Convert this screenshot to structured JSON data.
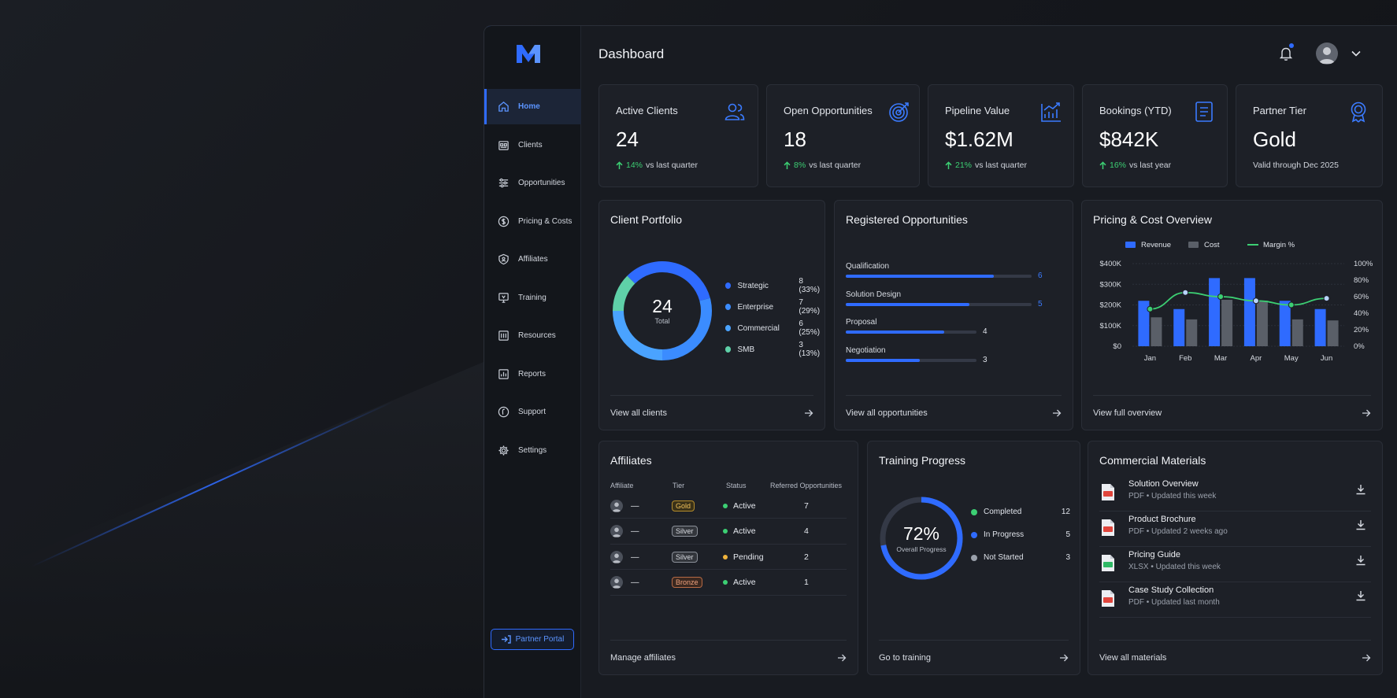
{
  "app": {
    "logo_letter": "M",
    "accent_color": "#2f6bff",
    "positive_color": "#3ccf73"
  },
  "sidebar": {
    "items": [
      {
        "label": "Home",
        "icon": "home-icon",
        "active": true
      },
      {
        "label": "Clients",
        "icon": "clients-icon"
      },
      {
        "label": "Opportunities",
        "icon": "opportunities-icon"
      },
      {
        "label": "Pricing & Costs",
        "icon": "dollar-icon"
      },
      {
        "label": "Affiliates",
        "icon": "shield-icon"
      },
      {
        "label": "Training",
        "icon": "training-icon"
      },
      {
        "label": "Resources",
        "icon": "resources-icon"
      },
      {
        "label": "Reports",
        "icon": "reports-icon"
      },
      {
        "label": "Support",
        "icon": "support-icon"
      },
      {
        "label": "Settings",
        "icon": "gear-icon"
      }
    ],
    "portal_label": "Partner Portal"
  },
  "header": {
    "title": "Dashboard",
    "notifications_unread": true
  },
  "stats": [
    {
      "title": "Active Clients",
      "value": "24",
      "pct": "14%",
      "suffix": "vs last quarter",
      "icon": "users-icon"
    },
    {
      "title": "Open Opportunities",
      "value": "18",
      "pct": "8%",
      "suffix": "vs last quarter",
      "icon": "target-icon"
    },
    {
      "title": "Pipeline Value",
      "value": "$1.62M",
      "pct": "21%",
      "suffix": "vs last quarter",
      "icon": "growth-chart-icon"
    },
    {
      "title": "Bookings (YTD)",
      "value": "$842K",
      "pct": "16%",
      "suffix": "vs last year",
      "icon": "document-icon"
    },
    {
      "title": "Partner Tier",
      "value": "Gold",
      "note": "Valid through Dec 2025",
      "icon": "award-icon"
    }
  ],
  "portfolio": {
    "title": "Client Portfolio",
    "center_value": "24",
    "center_label": "Total",
    "segments": [
      {
        "label": "Strategic",
        "value": 8,
        "display": "8 (33%)",
        "color": "#2f6bff"
      },
      {
        "label": "Enterprise",
        "value": 7,
        "display": "7 (29%)",
        "color": "#3b8cff"
      },
      {
        "label": "Commercial",
        "value": 6,
        "display": "6 (25%)",
        "color": "#4aa3ff"
      },
      {
        "label": "SMB",
        "value": 3,
        "display": "3 (13%)",
        "color": "#5fd0a8"
      }
    ],
    "footer": "View all clients"
  },
  "opportunities": {
    "title": "Registered Opportunities",
    "max": 6,
    "items": [
      {
        "label": "Qualification",
        "value": 6
      },
      {
        "label": "Solution Design",
        "value": 5
      },
      {
        "label": "Proposal",
        "value": 4
      },
      {
        "label": "Negotiation",
        "value": 3
      }
    ],
    "footer": "View all opportunities"
  },
  "pricing": {
    "title": "Pricing & Cost Overview",
    "footer": "View full overview"
  },
  "chart_data": {
    "type": "bar",
    "categories": [
      "Jan",
      "Feb",
      "Mar",
      "Apr",
      "May",
      "Jun"
    ],
    "series": [
      {
        "name": "Revenue",
        "type": "bar",
        "axis": "left",
        "color": "#2f6bff",
        "values": [
          220,
          180,
          330,
          330,
          220,
          180
        ]
      },
      {
        "name": "Cost",
        "type": "bar",
        "axis": "left",
        "color": "#5a5f68",
        "values": [
          140,
          130,
          225,
          220,
          130,
          125
        ]
      },
      {
        "name": "Margin %",
        "type": "line",
        "axis": "right",
        "color": "#3ccf73",
        "values": [
          45,
          65,
          60,
          55,
          50,
          58
        ]
      }
    ],
    "left_axis": {
      "ticks": [
        "$0",
        "$100K",
        "$200K",
        "$300K",
        "$400K"
      ],
      "ylim": [
        0,
        400
      ]
    },
    "right_axis": {
      "ticks": [
        "0%",
        "20%",
        "40%",
        "60%",
        "80%",
        "100%"
      ],
      "ylim": [
        0,
        100
      ]
    },
    "legend": "top-center",
    "grid": true
  },
  "affiliates": {
    "title": "Affiliates",
    "columns": [
      "Affiliate",
      "Tier",
      "Status",
      "Referred Opportunities"
    ],
    "rows": [
      {
        "name": "—",
        "tier": "Gold",
        "tier_class": "gold",
        "status": "Active",
        "status_color": "#3ccf73",
        "referred": "7"
      },
      {
        "name": "—",
        "tier": "Silver",
        "tier_class": "silver",
        "status": "Active",
        "status_color": "#3ccf73",
        "referred": "4"
      },
      {
        "name": "—",
        "tier": "Silver",
        "tier_class": "silver",
        "status": "Pending",
        "status_color": "#f0b43c",
        "referred": "2"
      },
      {
        "name": "—",
        "tier": "Bronze",
        "tier_class": "bronze",
        "status": "Active",
        "status_color": "#3ccf73",
        "referred": "1"
      }
    ],
    "footer": "Manage affiliates"
  },
  "training": {
    "title": "Training Progress",
    "percent_text": "72%",
    "percent": 72,
    "sub_label": "Overall Progress",
    "items": [
      {
        "label": "Completed",
        "value": "12",
        "color": "#3ccf73"
      },
      {
        "label": "In Progress",
        "value": "5",
        "color": "#2f6bff"
      },
      {
        "label": "Not Started",
        "value": "3",
        "color": "#9aa0ab"
      }
    ],
    "footer": "Go to training"
  },
  "materials": {
    "title": "Commercial Materials",
    "items": [
      {
        "name": "Solution Overview",
        "meta": "PDF • Updated this week",
        "type": "pdf"
      },
      {
        "name": "Product Brochure",
        "meta": "PDF • Updated 2 weeks ago",
        "type": "pdf"
      },
      {
        "name": "Pricing Guide",
        "meta": "XLSX • Updated this week",
        "type": "xlsx"
      },
      {
        "name": "Case Study Collection",
        "meta": "PDF • Updated last month",
        "type": "pdf"
      }
    ],
    "footer": "View all materials"
  }
}
